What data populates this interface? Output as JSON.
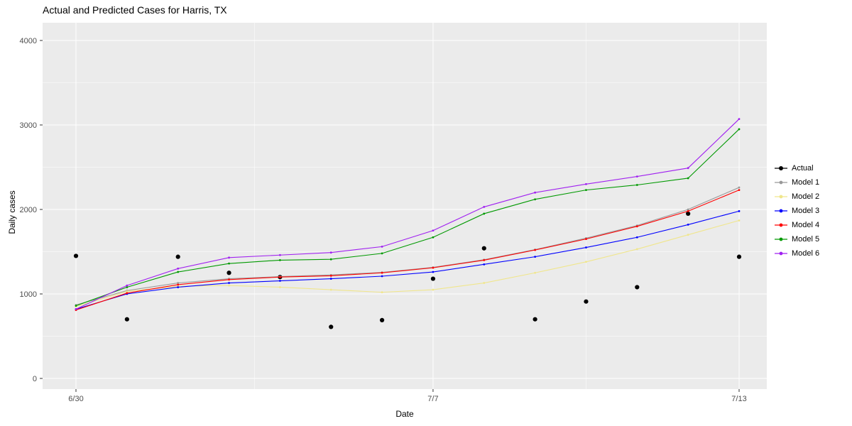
{
  "title": "Actual and Predicted Cases for Harris, TX",
  "chart_data": {
    "type": "line",
    "title": "Actual and Predicted Cases for Harris, TX",
    "xlabel": "Date",
    "ylabel": "Daily cases",
    "legend_position": "right",
    "grid": true,
    "panel_bg": "#EBEBEB",
    "grid_color": "#FFFFFF",
    "tick_label_color": "#4D4D4D",
    "tick_mark_color": "#333333",
    "x_tick_labels": [
      "6/30",
      "7/7",
      "7/13"
    ],
    "x_tick_days": [
      0,
      7,
      13
    ],
    "x_minor_days": [
      3.5,
      10
    ],
    "y_ticks": [
      0,
      1000,
      2000,
      3000,
      4000
    ],
    "y_minor": [
      500,
      1500,
      2500,
      3500
    ],
    "ylim": [
      -150,
      4200
    ],
    "dates": [
      "6/30",
      "7/1",
      "7/2",
      "7/3",
      "7/4",
      "7/5",
      "7/6",
      "7/7",
      "7/8",
      "7/9",
      "7/10",
      "7/11",
      "7/12",
      "7/13"
    ],
    "x_days": [
      0,
      1,
      2,
      3,
      4,
      5,
      6,
      7,
      8,
      9,
      10,
      11,
      12,
      13
    ],
    "series": [
      {
        "name": "Actual",
        "color": "#000000",
        "style": "points",
        "values": [
          1450,
          700,
          1440,
          1250,
          1200,
          610,
          690,
          1180,
          1540,
          700,
          910,
          1080,
          1950,
          1440
        ]
      },
      {
        "name": "Model 1",
        "color": "#999999",
        "style": "line",
        "values": [
          870,
          1040,
          1130,
          1180,
          1205,
          1225,
          1255,
          1315,
          1405,
          1525,
          1660,
          1810,
          2000,
          2260
        ]
      },
      {
        "name": "Model 2",
        "color": "#F0E68C",
        "style": "line",
        "values": [
          850,
          1030,
          1090,
          1100,
          1080,
          1050,
          1020,
          1050,
          1130,
          1250,
          1380,
          1530,
          1700,
          1870
        ]
      },
      {
        "name": "Model 3",
        "color": "#0000FF",
        "style": "line",
        "values": [
          820,
          1000,
          1080,
          1130,
          1155,
          1180,
          1210,
          1260,
          1350,
          1440,
          1550,
          1670,
          1820,
          1980
        ]
      },
      {
        "name": "Model 4",
        "color": "#FF0000",
        "style": "line",
        "values": [
          810,
          1010,
          1110,
          1170,
          1200,
          1215,
          1250,
          1310,
          1400,
          1520,
          1650,
          1800,
          1980,
          2230
        ]
      },
      {
        "name": "Model 5",
        "color": "#009900",
        "style": "line",
        "values": [
          860,
          1080,
          1260,
          1360,
          1400,
          1410,
          1480,
          1670,
          1950,
          2120,
          2230,
          2290,
          2370,
          2950
        ]
      },
      {
        "name": "Model 6",
        "color": "#A020F0",
        "style": "line",
        "values": [
          820,
          1100,
          1300,
          1430,
          1460,
          1490,
          1560,
          1750,
          2030,
          2200,
          2300,
          2390,
          2490,
          3070
        ]
      }
    ]
  }
}
